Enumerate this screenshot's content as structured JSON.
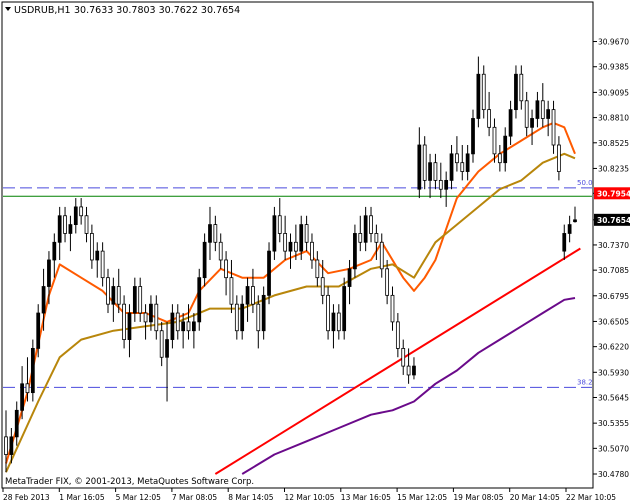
{
  "header": {
    "title": "USDRUB,H1",
    "ohlc": "30.7633 30.7803 30.7622 30.7654",
    "menu_icon": "triangle-down-icon"
  },
  "footer": {
    "copyright": "MetaTrader FIX, © 2001-2013, MetaQuotes Software Corp."
  },
  "colors": {
    "background": "#ffffff",
    "bull_candle": "#000000",
    "bear_candle": "#ffffff",
    "candle_outline": "#000000",
    "ma_fast": "#ff5a00",
    "ma_mid": "#b8860b",
    "ma_slow": "#6a0a8a",
    "trendline": "#ff0000",
    "fib_level": "#4b4bdd",
    "resistance": "#008000",
    "price_label_bg": "#ff0000",
    "current_label_bg": "#000000"
  },
  "chart_data": {
    "type": "candlestick",
    "symbol": "USDRUB",
    "timeframe": "H1",
    "ylim": [
      30.478,
      30.997
    ],
    "y_ticks": [
      "30.9670",
      "30.9385",
      "30.9095",
      "30.8810",
      "30.8525",
      "30.8235",
      "30.7954",
      "30.7654",
      "30.7370",
      "30.7085",
      "30.6795",
      "30.6505",
      "30.6220",
      "30.5930",
      "30.5645",
      "30.5355",
      "30.5070",
      "30.4780"
    ],
    "x_ticks": [
      "28 Feb 2013",
      "1 Mar 16:05",
      "5 Mar 12:05",
      "7 Mar 08:05",
      "8 Mar 14:05",
      "12 Mar 10:05",
      "13 Mar 16:05",
      "15 Mar 12:05",
      "19 Mar 08:05",
      "20 Mar 14:05",
      "22 Mar 10:05"
    ],
    "candle_count": 107,
    "candles": [
      [
        30.52,
        30.55,
        30.48,
        30.5
      ],
      [
        30.5,
        30.53,
        30.49,
        30.52
      ],
      [
        30.52,
        30.56,
        30.51,
        30.55
      ],
      [
        30.55,
        30.6,
        30.54,
        30.58
      ],
      [
        30.58,
        30.61,
        30.56,
        30.57
      ],
      [
        30.57,
        30.63,
        30.56,
        30.62
      ],
      [
        30.62,
        30.67,
        30.61,
        30.66
      ],
      [
        30.66,
        30.71,
        30.64,
        30.69
      ],
      [
        30.69,
        30.73,
        30.67,
        30.72
      ],
      [
        30.72,
        30.75,
        30.7,
        30.74
      ],
      [
        30.74,
        30.78,
        30.72,
        30.77
      ],
      [
        30.77,
        30.78,
        30.74,
        30.75
      ],
      [
        30.75,
        30.77,
        30.73,
        30.76
      ],
      [
        30.76,
        30.79,
        30.75,
        30.78
      ],
      [
        30.78,
        30.79,
        30.76,
        30.77
      ],
      [
        30.77,
        30.78,
        30.74,
        30.75
      ],
      [
        30.75,
        30.76,
        30.71,
        30.72
      ],
      [
        30.72,
        30.74,
        30.7,
        30.73
      ],
      [
        30.73,
        30.74,
        30.69,
        30.7
      ],
      [
        30.7,
        30.71,
        30.66,
        30.67
      ],
      [
        30.67,
        30.7,
        30.65,
        30.69
      ],
      [
        30.69,
        30.71,
        30.66,
        30.67
      ],
      [
        30.67,
        30.68,
        30.62,
        30.63
      ],
      [
        30.63,
        30.67,
        30.61,
        30.66
      ],
      [
        30.66,
        30.7,
        30.65,
        30.69
      ],
      [
        30.69,
        30.7,
        30.65,
        30.66
      ],
      [
        30.66,
        30.67,
        30.63,
        30.65
      ],
      [
        30.65,
        30.68,
        30.64,
        30.67
      ],
      [
        30.67,
        30.68,
        30.63,
        30.64
      ],
      [
        30.64,
        30.65,
        30.6,
        30.61
      ],
      [
        30.61,
        30.65,
        30.56,
        30.63
      ],
      [
        30.63,
        30.67,
        30.62,
        30.66
      ],
      [
        30.66,
        30.67,
        30.63,
        30.64
      ],
      [
        30.64,
        30.66,
        30.62,
        30.65
      ],
      [
        30.65,
        30.67,
        30.63,
        30.64
      ],
      [
        30.64,
        30.66,
        30.62,
        30.65
      ],
      [
        30.65,
        30.71,
        30.64,
        30.7
      ],
      [
        30.7,
        30.75,
        30.69,
        30.74
      ],
      [
        30.74,
        30.78,
        30.72,
        30.76
      ],
      [
        30.76,
        30.77,
        30.73,
        30.74
      ],
      [
        30.74,
        30.75,
        30.71,
        30.72
      ],
      [
        30.72,
        30.73,
        30.68,
        30.7
      ],
      [
        30.7,
        30.72,
        30.66,
        30.67
      ],
      [
        30.67,
        30.68,
        30.63,
        30.64
      ],
      [
        30.64,
        30.68,
        30.63,
        30.67
      ],
      [
        30.67,
        30.7,
        30.65,
        30.69
      ],
      [
        30.69,
        30.71,
        30.66,
        30.67
      ],
      [
        30.67,
        30.68,
        30.62,
        30.64
      ],
      [
        30.64,
        30.69,
        30.63,
        30.68
      ],
      [
        30.68,
        30.74,
        30.67,
        30.73
      ],
      [
        30.73,
        30.78,
        30.72,
        30.77
      ],
      [
        30.77,
        30.79,
        30.74,
        30.75
      ],
      [
        30.75,
        30.77,
        30.72,
        30.73
      ],
      [
        30.73,
        30.75,
        30.71,
        30.74
      ],
      [
        30.74,
        30.76,
        30.72,
        30.73
      ],
      [
        30.73,
        30.77,
        30.72,
        30.76
      ],
      [
        30.76,
        30.77,
        30.73,
        30.74
      ],
      [
        30.74,
        30.75,
        30.71,
        30.72
      ],
      [
        30.72,
        30.73,
        30.69,
        30.7
      ],
      [
        30.7,
        30.72,
        30.67,
        30.68
      ],
      [
        30.68,
        30.69,
        30.63,
        30.64
      ],
      [
        30.64,
        30.67,
        30.62,
        30.66
      ],
      [
        30.66,
        30.67,
        30.63,
        30.64
      ],
      [
        30.64,
        30.7,
        30.63,
        30.69
      ],
      [
        30.69,
        30.72,
        30.67,
        30.71
      ],
      [
        30.71,
        30.76,
        30.7,
        30.75
      ],
      [
        30.75,
        30.77,
        30.73,
        30.74
      ],
      [
        30.74,
        30.78,
        30.73,
        30.77
      ],
      [
        30.77,
        30.78,
        30.74,
        30.75
      ],
      [
        30.75,
        30.76,
        30.72,
        30.74
      ],
      [
        30.74,
        30.75,
        30.7,
        30.71
      ],
      [
        30.71,
        30.72,
        30.67,
        30.68
      ],
      [
        30.68,
        30.69,
        30.64,
        30.65
      ],
      [
        30.65,
        30.66,
        30.61,
        30.62
      ],
      [
        30.62,
        30.63,
        30.59,
        30.6
      ],
      [
        30.6,
        30.62,
        30.58,
        30.59
      ],
      [
        30.59,
        30.61,
        30.585,
        30.6
      ],
      [
        30.8,
        30.87,
        30.79,
        30.85
      ],
      [
        30.85,
        30.86,
        30.8,
        30.81
      ],
      [
        30.81,
        30.84,
        30.79,
        30.83
      ],
      [
        30.83,
        30.84,
        30.8,
        30.81
      ],
      [
        30.81,
        30.83,
        30.79,
        30.8
      ],
      [
        30.8,
        30.82,
        30.78,
        30.81
      ],
      [
        30.81,
        30.85,
        30.8,
        30.84
      ],
      [
        30.84,
        30.86,
        30.82,
        30.83
      ],
      [
        30.83,
        30.85,
        30.81,
        30.82
      ],
      [
        30.82,
        30.85,
        30.81,
        30.84
      ],
      [
        30.84,
        30.89,
        30.83,
        30.88
      ],
      [
        30.88,
        30.95,
        30.87,
        30.93
      ],
      [
        30.93,
        30.94,
        30.88,
        30.89
      ],
      [
        30.89,
        30.91,
        30.86,
        30.87
      ],
      [
        30.87,
        30.88,
        30.83,
        30.84
      ],
      [
        30.84,
        30.85,
        30.82,
        30.83
      ],
      [
        30.83,
        30.87,
        30.82,
        30.86
      ],
      [
        30.86,
        30.9,
        30.85,
        30.89
      ],
      [
        30.89,
        30.94,
        30.88,
        30.93
      ],
      [
        30.93,
        30.94,
        30.89,
        30.9
      ],
      [
        30.9,
        30.91,
        30.86,
        30.87
      ],
      [
        30.87,
        30.89,
        30.85,
        30.88
      ],
      [
        30.88,
        30.91,
        30.87,
        30.9
      ],
      [
        30.9,
        30.92,
        30.87,
        30.88
      ],
      [
        30.88,
        30.9,
        30.86,
        30.89
      ],
      [
        30.89,
        30.9,
        30.84,
        30.85
      ],
      [
        30.85,
        30.86,
        30.81,
        30.82
      ],
      [
        30.73,
        30.76,
        30.72,
        30.75
      ],
      [
        30.75,
        30.77,
        30.74,
        30.76
      ],
      [
        30.7633,
        30.7803,
        30.7622,
        30.7654
      ]
    ],
    "series": [
      {
        "key": "ma_fast",
        "x": [
          0,
          4,
          8,
          10,
          14,
          18,
          22,
          26,
          30,
          34,
          36,
          40,
          44,
          48,
          52,
          56,
          60,
          64,
          68,
          70,
          72,
          74,
          76,
          78,
          80,
          84,
          88,
          92,
          96,
          100,
          102,
          104,
          106
        ],
        "y": [
          30.49,
          30.57,
          30.68,
          30.715,
          30.7,
          30.685,
          30.66,
          30.66,
          30.65,
          30.66,
          30.685,
          30.71,
          30.7,
          30.7,
          30.72,
          30.73,
          30.705,
          30.71,
          30.72,
          30.74,
          30.72,
          30.7,
          30.685,
          30.7,
          30.72,
          30.79,
          30.82,
          30.84,
          30.855,
          30.87,
          30.875,
          30.87,
          30.84
        ]
      },
      {
        "key": "ma_mid",
        "x": [
          0,
          6,
          10,
          14,
          20,
          26,
          32,
          38,
          44,
          50,
          56,
          62,
          68,
          72,
          76,
          78,
          80,
          84,
          88,
          92,
          96,
          100,
          104,
          106
        ],
        "y": [
          30.48,
          30.56,
          30.61,
          30.63,
          30.64,
          30.645,
          30.65,
          30.665,
          30.665,
          30.68,
          30.69,
          30.69,
          30.71,
          30.715,
          30.7,
          30.72,
          30.74,
          30.76,
          30.78,
          30.8,
          30.81,
          30.83,
          30.84,
          30.835
        ]
      },
      {
        "key": "ma_slow",
        "x": [
          44,
          50,
          56,
          62,
          68,
          72,
          76,
          80,
          84,
          88,
          92,
          96,
          100,
          104,
          106
        ],
        "y": [
          30.478,
          30.5,
          30.515,
          30.53,
          30.545,
          30.55,
          30.56,
          30.58,
          30.595,
          30.615,
          30.63,
          30.645,
          30.66,
          30.675,
          30.677
        ]
      }
    ],
    "trendline": {
      "x": [
        39,
        107
      ],
      "y": [
        30.478,
        30.733
      ]
    },
    "fib_levels": [
      {
        "label": "50.0",
        "value": 30.8015
      },
      {
        "label": "38.2",
        "value": 30.576
      }
    ],
    "resistance": {
      "value": 30.792
    },
    "price_labels": [
      {
        "label": "30.7954",
        "value": 30.7954,
        "kind": "level"
      },
      {
        "label": "30.7654",
        "value": 30.7654,
        "kind": "current"
      }
    ]
  }
}
